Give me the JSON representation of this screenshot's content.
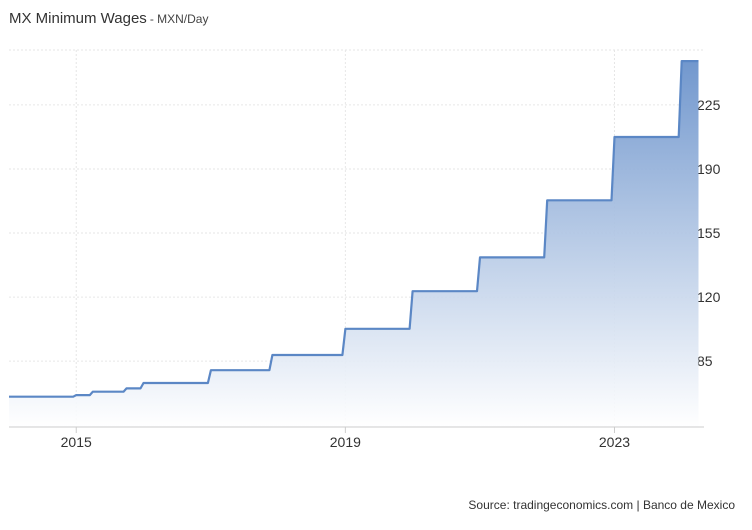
{
  "header": {
    "title": "MX Minimum Wages",
    "subtitle": "- MXN/Day"
  },
  "footer": {
    "source": "Source: tradingeconomics.com | Banco de Mexico"
  },
  "colors": {
    "line": "#5b87c5",
    "fill_top": "#6a92cb",
    "fill_bottom": "#ffffff",
    "grid": "#e6e6e6",
    "axis": "#cccccc",
    "text": "#333333"
  },
  "chart_data": {
    "type": "area",
    "title": "MX Minimum Wages",
    "subtitle": "- MXN/Day",
    "ylabel": "",
    "xlabel": "",
    "ylim": [
      49,
      255
    ],
    "y_ticks": [
      85,
      120,
      155,
      190,
      225
    ],
    "y_axis_side": "right",
    "x_ticks": [
      "2015",
      "2019",
      "2023"
    ],
    "grid": true,
    "legend": "none",
    "series": [
      {
        "values": [
          [
            "2014-01-01",
            65.58
          ],
          [
            "2015-01-01",
            66.45
          ],
          [
            "2015-04-01",
            68.28
          ],
          [
            "2015-10-01",
            70.1
          ],
          [
            "2016-01-01",
            73.04
          ],
          [
            "2017-01-01",
            80.04
          ],
          [
            "2017-12-01",
            88.36
          ],
          [
            "2019-01-01",
            102.68
          ],
          [
            "2020-01-01",
            123.22
          ],
          [
            "2021-01-01",
            141.7
          ],
          [
            "2022-01-01",
            172.87
          ],
          [
            "2023-01-01",
            207.44
          ],
          [
            "2024-01-01",
            248.93
          ],
          [
            "2024-04-01",
            248.93
          ]
        ]
      }
    ]
  }
}
